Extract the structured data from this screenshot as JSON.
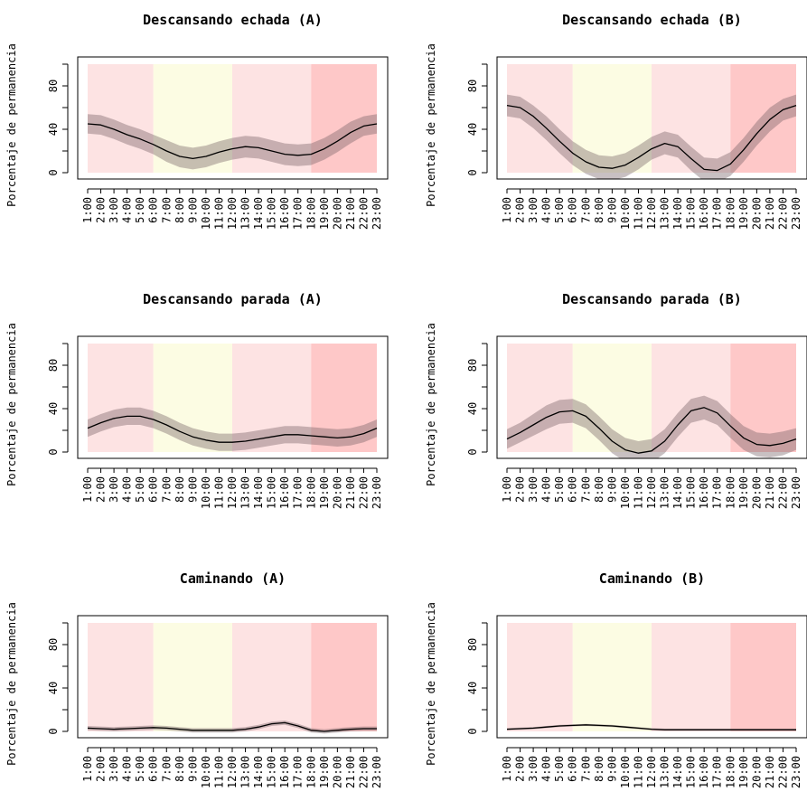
{
  "ylabel": "Porcentaje de permanencia",
  "x_ticks": [
    "1:00",
    "2:00",
    "3:00",
    "4:00",
    "5:00",
    "6:00",
    "7:00",
    "8:00",
    "9:00",
    "10:00",
    "11:00",
    "12:00",
    "13:00",
    "14:00",
    "15:00",
    "16:00",
    "17:00",
    "18:00",
    "19:00",
    "20:00",
    "21:00",
    "22:00",
    "23:00"
  ],
  "y_ticks": [
    "0",
    "40",
    "80"
  ],
  "colors": {
    "band_pink": "#fde3e3",
    "band_yellow": "#fcfce3",
    "band_red": "#fec8c8",
    "ribbon": "rgba(110,90,95,0.38)",
    "line": "#000000"
  },
  "chart_data": [
    {
      "type": "line",
      "title": "Descansando echada (A)",
      "ylabel": "Porcentaje de permanencia",
      "ylim": [
        0,
        100
      ],
      "background_bands": [
        {
          "from": 1,
          "to": 6,
          "color": "pink"
        },
        {
          "from": 6,
          "to": 12,
          "color": "yellow"
        },
        {
          "from": 12,
          "to": 18,
          "color": "pink"
        },
        {
          "from": 18,
          "to": 23,
          "color": "red"
        }
      ],
      "x": [
        1,
        2,
        3,
        4,
        5,
        6,
        7,
        8,
        9,
        10,
        11,
        12,
        13,
        14,
        15,
        16,
        17,
        18,
        19,
        20,
        21,
        22,
        23
      ],
      "series": [
        {
          "values": [
            45,
            44,
            40,
            35,
            31,
            26,
            20,
            15,
            13,
            15,
            19,
            22,
            24,
            23,
            20,
            17,
            16,
            17,
            22,
            29,
            37,
            43,
            45
          ],
          "lower": [
            36,
            35,
            31,
            26,
            22,
            17,
            10,
            5,
            3,
            5,
            9,
            12,
            14,
            13,
            10,
            7,
            6,
            7,
            12,
            19,
            27,
            34,
            36
          ],
          "upper": [
            54,
            53,
            49,
            44,
            40,
            35,
            30,
            25,
            23,
            25,
            29,
            32,
            34,
            33,
            30,
            27,
            26,
            27,
            32,
            39,
            47,
            52,
            54
          ]
        }
      ]
    },
    {
      "type": "line",
      "title": "Descansando echada (B)",
      "ylabel": "Porcentaje de permanencia",
      "ylim": [
        0,
        100
      ],
      "background_bands": [
        {
          "from": 1,
          "to": 6,
          "color": "pink"
        },
        {
          "from": 6,
          "to": 12,
          "color": "yellow"
        },
        {
          "from": 12,
          "to": 18,
          "color": "pink"
        },
        {
          "from": 18,
          "to": 23,
          "color": "red"
        }
      ],
      "x": [
        1,
        2,
        3,
        4,
        5,
        6,
        7,
        8,
        9,
        10,
        11,
        12,
        13,
        14,
        15,
        16,
        17,
        18,
        19,
        20,
        21,
        22,
        23
      ],
      "series": [
        {
          "values": [
            62,
            60,
            52,
            41,
            29,
            18,
            10,
            5,
            4,
            7,
            14,
            22,
            27,
            24,
            13,
            3,
            2,
            8,
            21,
            36,
            49,
            58,
            62
          ],
          "lower": [
            52,
            50,
            41,
            30,
            18,
            7,
            -1,
            -6,
            -7,
            -4,
            3,
            12,
            17,
            14,
            2,
            -8,
            -9,
            -3,
            10,
            25,
            38,
            48,
            52
          ],
          "upper": [
            72,
            70,
            62,
            52,
            40,
            29,
            21,
            16,
            15,
            18,
            25,
            33,
            38,
            35,
            24,
            14,
            13,
            19,
            32,
            47,
            60,
            68,
            72
          ]
        }
      ]
    },
    {
      "type": "line",
      "title": "Descansando parada (A)",
      "ylabel": "Porcentaje de permanencia",
      "ylim": [
        0,
        100
      ],
      "background_bands": [
        {
          "from": 1,
          "to": 6,
          "color": "pink"
        },
        {
          "from": 6,
          "to": 12,
          "color": "yellow"
        },
        {
          "from": 12,
          "to": 18,
          "color": "pink"
        },
        {
          "from": 18,
          "to": 23,
          "color": "red"
        }
      ],
      "x": [
        1,
        2,
        3,
        4,
        5,
        6,
        7,
        8,
        9,
        10,
        11,
        12,
        13,
        14,
        15,
        16,
        17,
        18,
        19,
        20,
        21,
        22,
        23
      ],
      "series": [
        {
          "values": [
            22,
            27,
            31,
            33,
            33,
            30,
            25,
            19,
            14,
            11,
            9,
            9,
            10,
            12,
            14,
            16,
            16,
            15,
            14,
            13,
            14,
            17,
            22
          ],
          "lower": [
            14,
            19,
            23,
            25,
            25,
            22,
            17,
            11,
            6,
            3,
            1,
            1,
            2,
            4,
            6,
            8,
            8,
            7,
            6,
            5,
            6,
            9,
            14
          ],
          "upper": [
            30,
            35,
            39,
            41,
            41,
            38,
            33,
            27,
            22,
            19,
            17,
            17,
            18,
            20,
            22,
            24,
            24,
            23,
            22,
            21,
            22,
            25,
            30
          ]
        }
      ]
    },
    {
      "type": "line",
      "title": "Descansando parada (B)",
      "ylabel": "Porcentaje de permanencia",
      "ylim": [
        0,
        100
      ],
      "background_bands": [
        {
          "from": 1,
          "to": 6,
          "color": "pink"
        },
        {
          "from": 6,
          "to": 12,
          "color": "yellow"
        },
        {
          "from": 12,
          "to": 18,
          "color": "pink"
        },
        {
          "from": 18,
          "to": 23,
          "color": "red"
        }
      ],
      "x": [
        1,
        2,
        3,
        4,
        5,
        6,
        7,
        8,
        9,
        10,
        11,
        12,
        13,
        14,
        15,
        16,
        17,
        18,
        19,
        20,
        21,
        22,
        23
      ],
      "series": [
        {
          "values": [
            12,
            18,
            25,
            32,
            37,
            38,
            33,
            22,
            10,
            2,
            -1,
            1,
            10,
            25,
            38,
            41,
            36,
            24,
            13,
            7,
            6,
            8,
            12
          ],
          "lower": [
            3,
            9,
            15,
            21,
            26,
            27,
            22,
            11,
            -1,
            -9,
            -12,
            -10,
            -1,
            14,
            27,
            30,
            25,
            13,
            2,
            -4,
            -5,
            -3,
            2
          ],
          "upper": [
            21,
            27,
            35,
            43,
            48,
            49,
            44,
            33,
            21,
            13,
            10,
            12,
            21,
            36,
            49,
            52,
            47,
            35,
            24,
            18,
            17,
            19,
            22
          ]
        }
      ]
    },
    {
      "type": "line",
      "title": "Caminando (A)",
      "ylabel": "Porcentaje de permanencia",
      "ylim": [
        0,
        100
      ],
      "background_bands": [
        {
          "from": 1,
          "to": 6,
          "color": "pink"
        },
        {
          "from": 6,
          "to": 12,
          "color": "yellow"
        },
        {
          "from": 12,
          "to": 18,
          "color": "pink"
        },
        {
          "from": 18,
          "to": 23,
          "color": "red"
        }
      ],
      "x": [
        1,
        2,
        3,
        4,
        5,
        6,
        7,
        8,
        9,
        10,
        11,
        12,
        13,
        14,
        15,
        16,
        17,
        18,
        19,
        20,
        21,
        22,
        23
      ],
      "series": [
        {
          "values": [
            3,
            2.5,
            2,
            2.5,
            3,
            3.5,
            3,
            2,
            1,
            1,
            1,
            1,
            2,
            4,
            7,
            8,
            5,
            1,
            0,
            1,
            2,
            2.5,
            2.5
          ],
          "lower": [
            1,
            0.5,
            0,
            0.5,
            1,
            1.5,
            1,
            0,
            -1,
            -1,
            -1,
            -1,
            0,
            2,
            5,
            6,
            3,
            -1,
            -2,
            -1,
            0,
            0.5,
            0.5
          ],
          "upper": [
            5,
            4.5,
            4,
            4.5,
            5,
            5.5,
            5,
            4,
            3,
            3,
            3,
            3,
            4,
            6,
            9,
            10,
            7,
            3,
            2,
            3,
            4,
            4.5,
            4.5
          ]
        }
      ]
    },
    {
      "type": "line",
      "title": "Caminando (B)",
      "ylabel": "Porcentaje de permanencia",
      "ylim": [
        0,
        100
      ],
      "background_bands": [
        {
          "from": 1,
          "to": 6,
          "color": "pink"
        },
        {
          "from": 6,
          "to": 12,
          "color": "yellow"
        },
        {
          "from": 12,
          "to": 18,
          "color": "pink"
        },
        {
          "from": 18,
          "to": 23,
          "color": "red"
        }
      ],
      "x": [
        1,
        2,
        3,
        4,
        5,
        6,
        7,
        8,
        9,
        10,
        11,
        12,
        13,
        14,
        15,
        16,
        17,
        18,
        19,
        20,
        21,
        22,
        23
      ],
      "series": [
        {
          "values": [
            2,
            2.5,
            3,
            4,
            5,
            5.5,
            6,
            5.5,
            5,
            4,
            3,
            2,
            1.5,
            1.5,
            1.5,
            1.5,
            1.5,
            1.5,
            1.5,
            1.5,
            1.5,
            1.5,
            1.5
          ],
          "lower": [
            1,
            1.5,
            2,
            3,
            4,
            4.5,
            5,
            4.5,
            4,
            3,
            2,
            1,
            0.5,
            0.5,
            0.5,
            0.5,
            0.5,
            0.5,
            0.5,
            0.5,
            0.5,
            0.5,
            0.5
          ],
          "upper": [
            3,
            3.5,
            4,
            5,
            6,
            6.5,
            7,
            6.5,
            6,
            5,
            4,
            3,
            2.5,
            2.5,
            2.5,
            2.5,
            2.5,
            2.5,
            2.5,
            2.5,
            2.5,
            2.5,
            2.5
          ]
        }
      ]
    }
  ]
}
